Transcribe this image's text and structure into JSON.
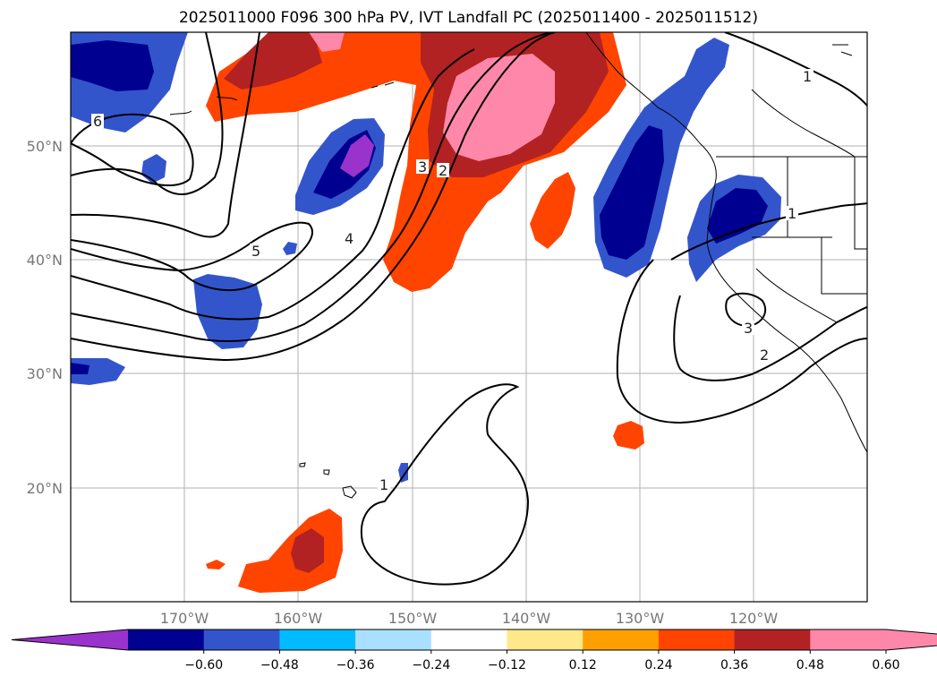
{
  "title": "2025011000 F096 300 hPa PV, IVT Landfall PC (2025011400 - 2025011512)",
  "lat_ticks": [
    "50°N",
    "40°N",
    "30°N",
    "20°N"
  ],
  "lon_ticks": [
    "170°W",
    "160°W",
    "150°W",
    "140°W",
    "130°W",
    "120°W"
  ],
  "contour_labels": [
    "6",
    "5",
    "4",
    "3",
    "2",
    "1",
    "1",
    "1",
    "3",
    "2"
  ],
  "colorbar": {
    "tick_labels": [
      "−0.60",
      "−0.48",
      "−0.36",
      "−0.24",
      "−0.12",
      "0.12",
      "0.24",
      "0.36",
      "0.48",
      "0.60"
    ],
    "colors": [
      "#9933cc",
      "#000090",
      "#3355cc",
      "#00bbff",
      "#aae0ff",
      "#ffffff",
      "#ffe88a",
      "#ffa000",
      "#ff4400",
      "#b22222",
      "#ff88aa",
      "#ff88aa"
    ]
  }
}
